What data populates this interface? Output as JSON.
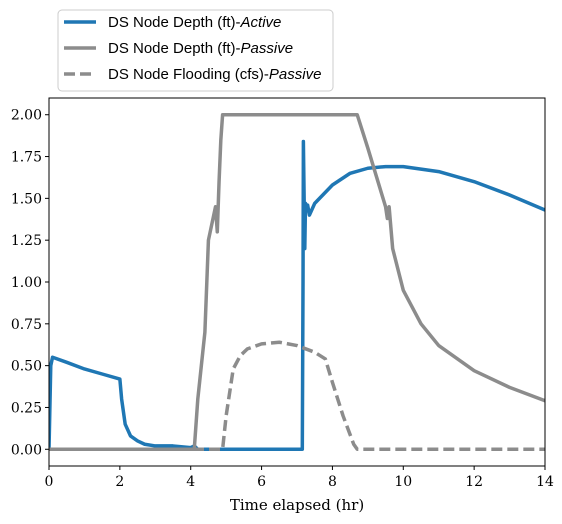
{
  "chart_data": {
    "type": "line",
    "xlabel": "Time elapsed (hr)",
    "ylabel": "",
    "xlim": [
      0,
      14
    ],
    "ylim": [
      -0.1,
      2.1
    ],
    "xticks": [
      "0",
      "2",
      "4",
      "6",
      "8",
      "10",
      "12",
      "14"
    ],
    "yticks": [
      "0.00",
      "0.25",
      "0.50",
      "0.75",
      "1.00",
      "1.25",
      "1.50",
      "1.75",
      "2.00"
    ],
    "grid": false,
    "legend_position": "above plot, left",
    "series": [
      {
        "name": "DS Node Depth (ft)-Active",
        "name_base": "DS Node Depth (ft)-",
        "name_italic": "Active",
        "color": "#1f77b4",
        "style": "solid",
        "x": [
          0,
          0.05,
          0.1,
          0.5,
          1.0,
          1.5,
          2.0,
          2.05,
          2.15,
          2.3,
          2.5,
          2.7,
          3.0,
          3.5,
          4.0,
          4.1,
          4.2,
          5.0,
          6.0,
          7.0,
          7.15,
          7.17,
          7.18,
          7.22,
          7.24,
          7.26,
          7.3,
          7.35,
          7.5,
          8.0,
          8.5,
          9.0,
          9.5,
          9.6,
          10.0,
          11.0,
          12.0,
          13.0,
          14.0
        ],
        "y": [
          0.0,
          0.5,
          0.55,
          0.52,
          0.48,
          0.45,
          0.42,
          0.3,
          0.15,
          0.08,
          0.05,
          0.03,
          0.02,
          0.02,
          0.01,
          0.02,
          0.0,
          0.0,
          0.0,
          0.0,
          0.0,
          1.0,
          1.84,
          1.2,
          1.47,
          1.44,
          1.46,
          1.4,
          1.47,
          1.58,
          1.65,
          1.68,
          1.69,
          1.69,
          1.69,
          1.66,
          1.6,
          1.52,
          1.43
        ]
      },
      {
        "name": "DS Node Depth (ft)-Passive",
        "name_base": "DS Node Depth (ft)-",
        "name_italic": "Passive",
        "color": "#8c8c8c",
        "style": "solid",
        "x": [
          0,
          4.0,
          4.1,
          4.2,
          4.4,
          4.5,
          4.6,
          4.7,
          4.75,
          4.8,
          4.85,
          4.9,
          5.0,
          6.0,
          7.0,
          8.0,
          8.7,
          9.0,
          9.5,
          9.55,
          9.6,
          9.7,
          10.0,
          10.5,
          11.0,
          12.0,
          13.0,
          14.0
        ],
        "y": [
          0.0,
          0.0,
          0.0,
          0.3,
          0.7,
          1.25,
          1.35,
          1.45,
          1.3,
          1.6,
          1.85,
          2.0,
          2.0,
          2.0,
          2.0,
          2.0,
          2.0,
          1.8,
          1.45,
          1.38,
          1.45,
          1.2,
          0.95,
          0.75,
          0.62,
          0.47,
          0.37,
          0.29
        ]
      },
      {
        "name": "DS Node Flooding (cfs)-Passive",
        "name_base": "DS Node Flooding (cfs)-",
        "name_italic": "Passive",
        "color": "#8c8c8c",
        "style": "dashed",
        "x": [
          0,
          4.9,
          5.0,
          5.2,
          5.4,
          5.6,
          6.0,
          6.5,
          7.0,
          7.5,
          7.8,
          8.0,
          8.3,
          8.6,
          8.7,
          9.0,
          10.0,
          12.0,
          14.0
        ],
        "y": [
          0.0,
          0.0,
          0.2,
          0.48,
          0.56,
          0.6,
          0.63,
          0.64,
          0.62,
          0.58,
          0.54,
          0.4,
          0.2,
          0.03,
          0.0,
          0.0,
          0.0,
          0.0,
          0.0
        ]
      }
    ]
  }
}
